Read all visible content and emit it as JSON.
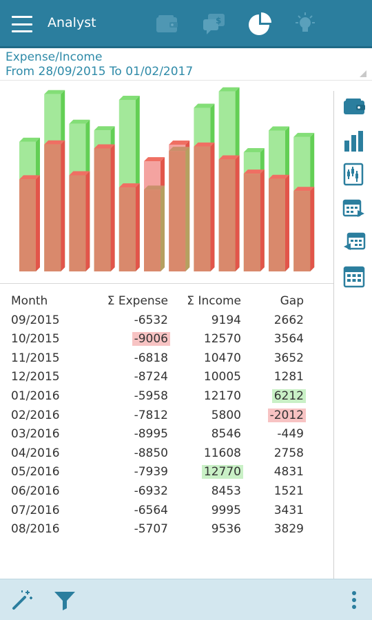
{
  "app": {
    "title": "Analyst"
  },
  "toolbar_tabs": [
    {
      "icon": "wallet-icon",
      "active": false
    },
    {
      "icon": "money-chat-icon",
      "active": false
    },
    {
      "icon": "pie-chart-icon",
      "active": true
    },
    {
      "icon": "lightbulb-icon",
      "active": false
    }
  ],
  "header": {
    "title": "Expense/Income",
    "range": "From 28/09/2015 To 01/02/2017"
  },
  "colors": {
    "appbar": "#2b7e9e",
    "income": "#7fdc6f",
    "expense": "#e8665a",
    "overlap": "#d8876a",
    "accent_text": "#2e8aa8",
    "highlight_red": "#f7c3c3",
    "highlight_green": "#c9f0c6"
  },
  "chart_data": {
    "type": "bar",
    "categories": [
      "09/2015",
      "10/2015",
      "11/2015",
      "12/2015",
      "01/2016",
      "02/2016",
      "03/2016",
      "04/2016",
      "05/2016",
      "06/2016",
      "07/2016",
      "08/2016"
    ],
    "series": [
      {
        "name": "Σ Expense",
        "values": [
          6532,
          9006,
          6818,
          8724,
          5958,
          7812,
          8995,
          8850,
          7939,
          6932,
          6564,
          5707
        ]
      },
      {
        "name": "Σ Income",
        "values": [
          9194,
          12570,
          10470,
          10005,
          12170,
          5800,
          8546,
          11608,
          12770,
          8453,
          9995,
          9536
        ]
      }
    ],
    "ylim": [
      0,
      13000
    ]
  },
  "table": {
    "headers": [
      "Month",
      "Σ Expense",
      "Σ Income",
      "Gap"
    ],
    "rows": [
      {
        "month": "09/2015",
        "expense": "-6532",
        "income": "9194",
        "gap": "2662"
      },
      {
        "month": "10/2015",
        "expense": "-9006",
        "income": "12570",
        "gap": "3564",
        "hl_expense": "red"
      },
      {
        "month": "11/2015",
        "expense": "-6818",
        "income": "10470",
        "gap": "3652"
      },
      {
        "month": "12/2015",
        "expense": "-8724",
        "income": "10005",
        "gap": "1281"
      },
      {
        "month": "01/2016",
        "expense": "-5958",
        "income": "12170",
        "gap": "6212",
        "hl_gap": "green"
      },
      {
        "month": "02/2016",
        "expense": "-7812",
        "income": "5800",
        "gap": "-2012",
        "hl_gap": "red"
      },
      {
        "month": "03/2016",
        "expense": "-8995",
        "income": "8546",
        "gap": "-449"
      },
      {
        "month": "04/2016",
        "expense": "-8850",
        "income": "11608",
        "gap": "2758"
      },
      {
        "month": "05/2016",
        "expense": "-7939",
        "income": "12770",
        "gap": "4831",
        "hl_income": "green"
      },
      {
        "month": "06/2016",
        "expense": "-6932",
        "income": "8453",
        "gap": "1521"
      },
      {
        "month": "07/2016",
        "expense": "-6564",
        "income": "9995",
        "gap": "3431"
      },
      {
        "month": "08/2016",
        "expense": "-5707",
        "income": "9536",
        "gap": "3829"
      }
    ]
  },
  "right_toolbar": [
    "wallet-icon",
    "bar-chart-icon",
    "stock-chart-icon",
    "calendar-forward-icon",
    "calendar-back-icon",
    "calendar-icon"
  ],
  "bottom_toolbar": [
    "magic-wand-icon",
    "filter-icon",
    "more-vert-icon"
  ]
}
